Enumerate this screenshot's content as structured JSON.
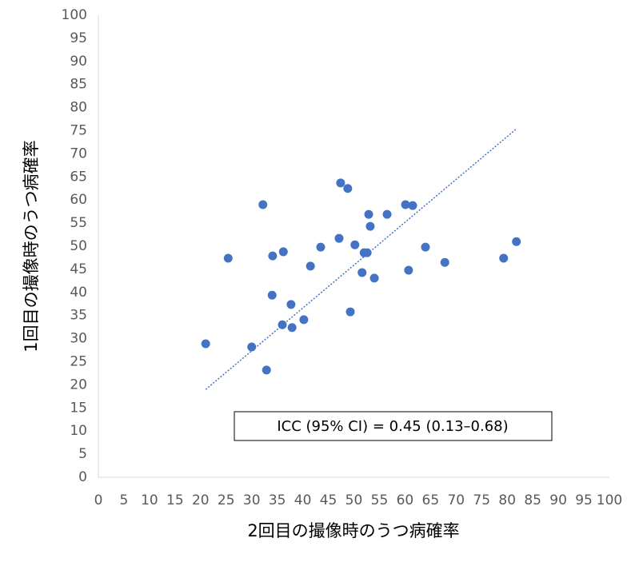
{
  "chart_data": {
    "type": "scatter",
    "xlabel": "2回目の撮像時のうつ病確率",
    "ylabel": "1回目の撮像時のうつ病確率",
    "annotation": "ICC (95% CI) = 0.45 (0.13–0.68)",
    "xlim": [
      0,
      100
    ],
    "ylim": [
      0,
      100
    ],
    "xticks": [
      0,
      5,
      10,
      15,
      20,
      25,
      30,
      35,
      40,
      45,
      50,
      55,
      60,
      65,
      70,
      75,
      80,
      85,
      90,
      95,
      100
    ],
    "yticks": [
      0,
      5,
      10,
      15,
      20,
      25,
      30,
      35,
      40,
      45,
      50,
      55,
      60,
      65,
      70,
      75,
      80,
      85,
      90,
      95,
      100
    ],
    "grid": false,
    "series": [
      {
        "color": "#4472c4",
        "x": [
          21.0,
          25.4,
          30.0,
          32.2,
          32.9,
          34.0,
          34.1,
          36.0,
          36.2,
          37.7,
          37.9,
          40.2,
          41.5,
          43.5,
          47.1,
          47.4,
          48.8,
          49.3,
          50.2,
          51.6,
          52.0,
          52.6,
          52.9,
          53.2,
          54.0,
          56.5,
          60.1,
          60.7,
          61.5,
          64.0,
          67.8,
          79.3,
          81.8
        ],
        "values": [
          28.9,
          47.4,
          28.2,
          59.0,
          23.2,
          39.4,
          47.9,
          33.0,
          48.8,
          37.4,
          32.4,
          34.1,
          45.7,
          49.8,
          51.7,
          63.7,
          62.5,
          35.8,
          50.3,
          44.3,
          48.6,
          48.6,
          56.9,
          54.3,
          43.1,
          56.9,
          59.0,
          44.8,
          58.8,
          49.8,
          46.5,
          47.4,
          51.0
        ]
      }
    ],
    "trendline": {
      "color": "#4472c4",
      "x": [
        21.0,
        81.8
      ],
      "values": [
        19.0,
        75.4
      ]
    }
  }
}
